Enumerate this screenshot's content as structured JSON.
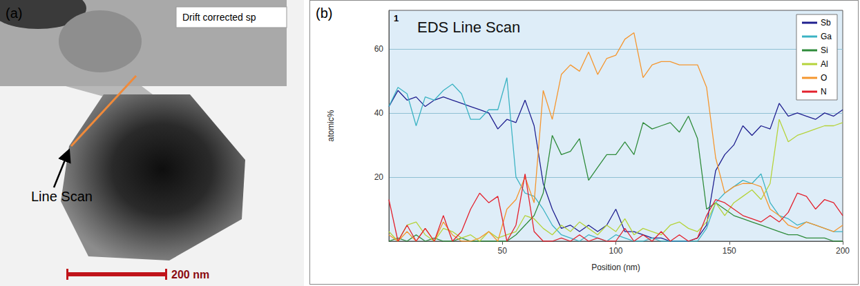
{
  "image_panel": {
    "label": "(a)",
    "info_box": "Drift corrected sp",
    "annotation": "Line Scan",
    "scale_bar": "200 nm"
  },
  "chart_data": {
    "type": "line",
    "panel_label": "(b)",
    "title": "EDS Line Scan",
    "annotation": "1",
    "x_label": "Position (nm)",
    "y_label": "atomic%",
    "x": [
      0,
      4,
      8,
      12,
      16,
      20,
      24,
      28,
      32,
      36,
      40,
      44,
      48,
      52,
      56,
      60,
      64,
      68,
      72,
      76,
      80,
      84,
      88,
      92,
      96,
      100,
      104,
      108,
      112,
      116,
      120,
      124,
      128,
      132,
      136,
      140,
      144,
      148,
      152,
      156,
      160,
      164,
      168,
      172,
      176,
      180,
      184,
      188,
      192,
      196,
      200
    ],
    "xlim": [
      0,
      200
    ],
    "xticks": [
      50,
      100,
      150,
      200
    ],
    "ylim": [
      0,
      72
    ],
    "yticks": [
      20,
      40,
      60
    ],
    "grid": true,
    "legend": "upper right",
    "series": [
      {
        "name": "Sb",
        "color": "#1f1f8f",
        "values": [
          42,
          47,
          44,
          45,
          42,
          44,
          45,
          44,
          43,
          42,
          41,
          40,
          35,
          38,
          37,
          44,
          36,
          18,
          10,
          4,
          5,
          3,
          5,
          3,
          5,
          10,
          3,
          3,
          2,
          1,
          1,
          0,
          0,
          0,
          1,
          5,
          22,
          27,
          30,
          36,
          33,
          36,
          35,
          43,
          39,
          40,
          39,
          38,
          40,
          39,
          41
        ]
      },
      {
        "name": "Ga",
        "color": "#3bb3c3",
        "values": [
          42,
          48,
          46,
          36,
          45,
          44,
          47,
          49,
          46,
          38,
          38,
          41,
          41,
          51,
          20,
          15,
          14,
          10,
          5,
          2,
          1,
          0,
          2,
          1,
          0,
          2,
          1,
          0,
          0,
          1,
          0,
          0,
          0,
          0,
          0,
          4,
          12,
          15,
          17,
          19,
          18,
          21,
          12,
          8,
          7,
          5,
          6,
          5,
          4,
          3,
          3
        ]
      },
      {
        "name": "Si",
        "color": "#2e8b3a",
        "values": [
          0,
          1,
          0,
          2,
          0,
          1,
          0,
          0,
          1,
          0,
          0,
          0,
          0,
          0,
          2,
          5,
          8,
          15,
          33,
          27,
          28,
          32,
          19,
          23,
          27,
          27,
          31,
          27,
          37,
          35,
          36,
          37,
          34,
          39,
          32,
          10,
          12,
          10,
          8,
          7,
          6,
          5,
          4,
          3,
          2,
          2,
          1,
          1,
          1,
          0,
          0
        ]
      },
      {
        "name": "Al",
        "color": "#b5d33a",
        "values": [
          3,
          0,
          5,
          6,
          2,
          0,
          4,
          3,
          1,
          2,
          0,
          3,
          1,
          2,
          3,
          8,
          7,
          4,
          2,
          5,
          3,
          6,
          4,
          2,
          5,
          3,
          7,
          2,
          4,
          3,
          2,
          5,
          6,
          4,
          3,
          6,
          12,
          8,
          12,
          14,
          16,
          13,
          18,
          38,
          31,
          33,
          34,
          35,
          36,
          36,
          37
        ]
      },
      {
        "name": "O",
        "color": "#f5962e",
        "values": [
          2,
          0,
          3,
          0,
          4,
          0,
          6,
          2,
          0,
          0,
          1,
          3,
          0,
          10,
          13,
          20,
          12,
          47,
          38,
          52,
          55,
          53,
          59,
          52,
          57,
          58,
          63,
          65,
          51,
          55,
          56,
          56,
          55,
          55,
          55,
          48,
          26,
          15,
          17,
          18,
          18,
          17,
          10,
          8,
          5,
          4,
          6,
          5,
          4,
          3,
          5
        ]
      },
      {
        "name": "N",
        "color": "#e3202c",
        "values": [
          13,
          0,
          5,
          0,
          4,
          0,
          8,
          0,
          3,
          10,
          15,
          12,
          14,
          0,
          5,
          21,
          3,
          0,
          0,
          1,
          0,
          2,
          0,
          1,
          0,
          0,
          4,
          0,
          2,
          0,
          3,
          0,
          2,
          0,
          1,
          8,
          13,
          12,
          10,
          8,
          7,
          6,
          8,
          6,
          9,
          15,
          14,
          10,
          13,
          12,
          8
        ]
      }
    ]
  }
}
